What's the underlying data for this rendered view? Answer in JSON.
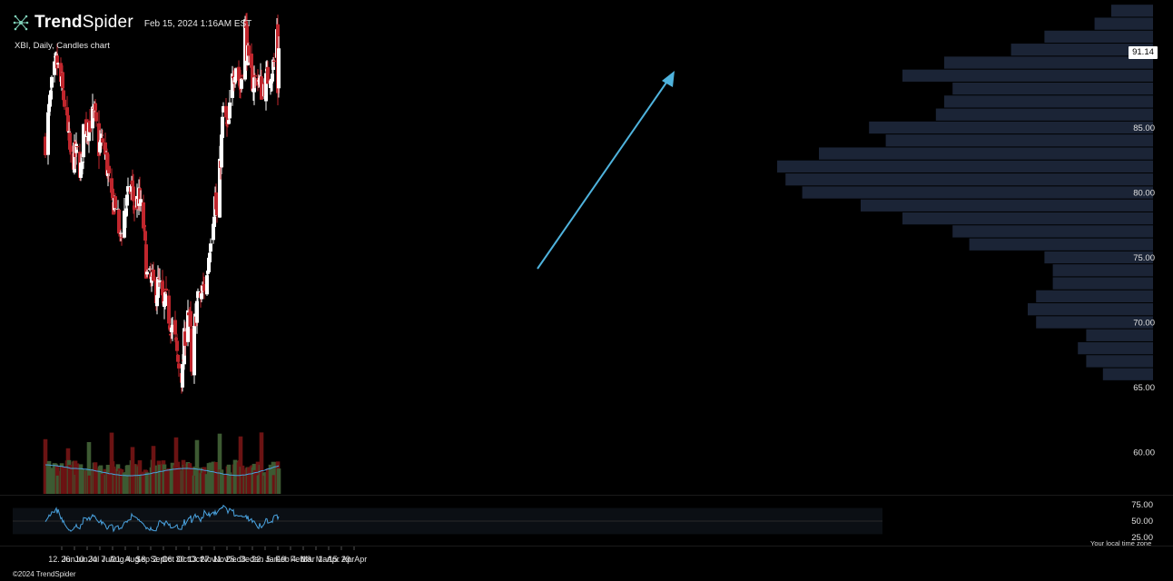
{
  "header": {
    "brand_bold": "Trend",
    "brand_thin": "Spider",
    "date": "Feb 15, 2024 1:16AM EST"
  },
  "title": "XBI, Daily, Candles chart",
  "last_price": "91.14",
  "copyright": "©2024 TrendSpider",
  "timezone_note": "Your local time zone",
  "colors": {
    "background": "#000000",
    "up": "#ffffff",
    "down": "#c0262d",
    "vol_up": "#3d5a32",
    "vol_down": "#6b1313",
    "volume_ma": "#4aa3e0",
    "rsi_line": "#4aa3e0",
    "volume_profile": "#1b2436",
    "arrow": "#4fb3dd",
    "axis_text": "#e0e0e0"
  },
  "chart_data": {
    "type": "candlestick",
    "title": "XBI, Daily, Candles chart",
    "price_axis_ticks": [
      "60.00",
      "65.00",
      "70.00",
      "75.00",
      "80.00",
      "85.00"
    ],
    "x_tick_labels": [
      "12. Jun",
      "26. Jun",
      "10. Jul",
      "24. Jul",
      "7. Aug",
      "21. Aug",
      "4. Sep",
      "18. Sep",
      "2. Oct",
      "16. Oct",
      "30. Oct",
      "13. Nov",
      "27. Nov",
      "11. Dec",
      "25. Dec",
      "8. Jan",
      "22. Jan",
      "5. Feb",
      "19. Feb",
      "4. Mar",
      "18. Mar",
      "1. Apr",
      "15. Apr",
      "29. Apr"
    ],
    "close_path": [
      [
        "2023-06-02",
        84.0
      ],
      [
        "2023-06-09",
        88.0
      ],
      [
        "2023-06-14",
        90.0
      ],
      [
        "2023-06-16",
        89.5
      ],
      [
        "2023-06-23",
        87.0
      ],
      [
        "2023-06-30",
        82.5
      ],
      [
        "2023-07-07",
        83.0
      ],
      [
        "2023-07-12",
        81.5
      ],
      [
        "2023-07-14",
        85.0
      ],
      [
        "2023-07-21",
        85.5
      ],
      [
        "2023-07-26",
        86.0
      ],
      [
        "2023-07-31",
        83.5
      ],
      [
        "2023-08-04",
        84.0
      ],
      [
        "2023-08-09",
        82.0
      ],
      [
        "2023-08-14",
        79.0
      ],
      [
        "2023-08-18",
        79.5
      ],
      [
        "2023-08-23",
        76.5
      ],
      [
        "2023-08-28",
        78.5
      ],
      [
        "2023-09-05",
        80.5
      ],
      [
        "2023-09-08",
        79.0
      ],
      [
        "2023-09-13",
        79.5
      ],
      [
        "2023-09-18",
        77.5
      ],
      [
        "2023-09-22",
        73.5
      ],
      [
        "2023-09-27",
        73.0
      ],
      [
        "2023-10-02",
        72.5
      ],
      [
        "2023-10-05",
        73.0
      ],
      [
        "2023-10-10",
        71.0
      ],
      [
        "2023-10-13",
        71.5
      ],
      [
        "2023-10-18",
        70.0
      ],
      [
        "2023-10-23",
        68.5
      ],
      [
        "2023-10-26",
        67.0
      ],
      [
        "2023-10-31",
        66.0
      ],
      [
        "2023-11-02",
        68.5
      ],
      [
        "2023-11-06",
        71.5
      ],
      [
        "2023-11-09",
        69.0
      ],
      [
        "2023-11-10",
        65.8
      ],
      [
        "2023-11-14",
        70.0
      ],
      [
        "2023-11-16",
        71.5
      ],
      [
        "2023-11-20",
        72.0
      ],
      [
        "2023-11-27",
        73.5
      ],
      [
        "2023-12-01",
        77.0
      ],
      [
        "2023-12-06",
        79.5
      ],
      [
        "2023-12-08",
        78.0
      ],
      [
        "2023-12-13",
        84.0
      ],
      [
        "2023-12-15",
        86.5
      ],
      [
        "2023-12-20",
        84.5
      ],
      [
        "2023-12-26",
        89.5
      ],
      [
        "2023-12-29",
        90.0
      ],
      [
        "2024-01-03",
        88.0
      ],
      [
        "2024-01-08",
        93.0
      ],
      [
        "2024-01-12",
        89.5
      ],
      [
        "2024-01-17",
        88.5
      ],
      [
        "2024-01-22",
        89.0
      ],
      [
        "2024-01-26",
        88.0
      ],
      [
        "2024-01-31",
        88.5
      ],
      [
        "2024-02-05",
        89.5
      ],
      [
        "2024-02-09",
        90.0
      ],
      [
        "2024-02-12",
        92.5
      ],
      [
        "2024-02-13",
        88.0
      ],
      [
        "2024-02-14",
        91.14
      ]
    ],
    "volume_profile_levels": [
      [
        66.0,
        6
      ],
      [
        67.0,
        8
      ],
      [
        68.0,
        9
      ],
      [
        69.0,
        8
      ],
      [
        70.0,
        14
      ],
      [
        71.0,
        15
      ],
      [
        72.0,
        14
      ],
      [
        73.0,
        12
      ],
      [
        74.0,
        12
      ],
      [
        75.0,
        13
      ],
      [
        76.0,
        22
      ],
      [
        77.0,
        24
      ],
      [
        78.0,
        30
      ],
      [
        79.0,
        35
      ],
      [
        80.0,
        42
      ],
      [
        81.0,
        44
      ],
      [
        82.0,
        45
      ],
      [
        83.0,
        40
      ],
      [
        84.0,
        32
      ],
      [
        85.0,
        34
      ],
      [
        86.0,
        26
      ],
      [
        87.0,
        25
      ],
      [
        88.0,
        24
      ],
      [
        89.0,
        30
      ],
      [
        90.0,
        25
      ],
      [
        91.0,
        17
      ],
      [
        92.0,
        13
      ],
      [
        93.0,
        7
      ],
      [
        94.0,
        5
      ]
    ],
    "rsi_axis_ticks": [
      "75.00",
      "50.00",
      "25.00"
    ]
  }
}
